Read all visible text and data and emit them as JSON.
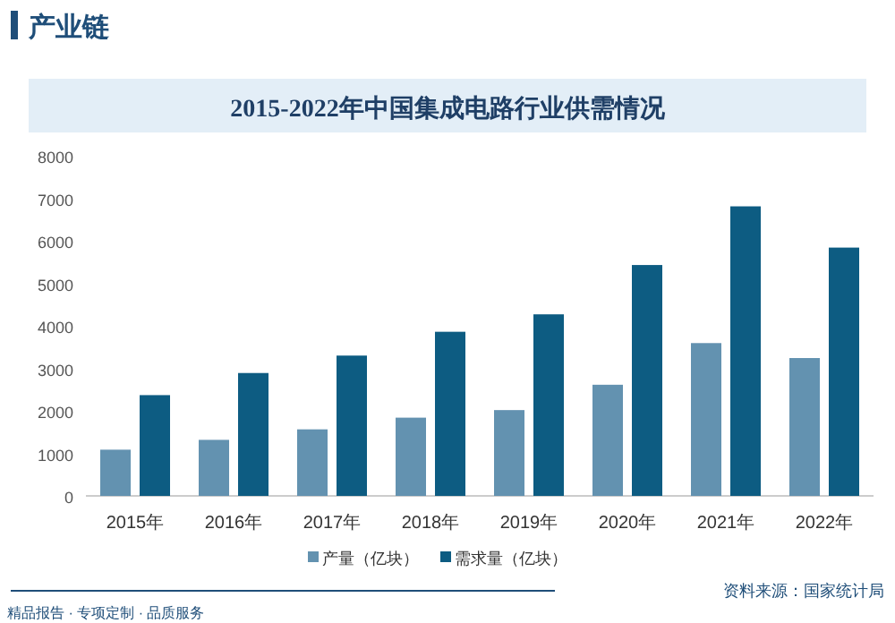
{
  "chart_data": {
    "type": "bar",
    "title": "2015-2022年中国集成电路行业供需情况",
    "subtitle": "产业链",
    "categories": [
      "2015年",
      "2016年",
      "2017年",
      "2018年",
      "2019年",
      "2020年",
      "2021年",
      "2022年"
    ],
    "series": [
      {
        "name": "产量（亿块）",
        "color": "#6392b0",
        "values": [
          1087,
          1318,
          1565,
          1840,
          2018,
          2614,
          3594,
          3242
        ]
      },
      {
        "name": "需求量（亿块）",
        "color": "#0d5c82",
        "values": [
          2370,
          2890,
          3300,
          3860,
          4270,
          5430,
          6810,
          5840
        ]
      }
    ],
    "ylim": [
      0,
      8000
    ],
    "yticks": [
      0,
      1000,
      2000,
      3000,
      4000,
      5000,
      6000,
      7000,
      8000
    ],
    "grid": false,
    "legend": "bottom",
    "annotations": [
      "资料来源：国家统计局",
      "精品报告 · 专项定制 · 品质服务"
    ]
  }
}
